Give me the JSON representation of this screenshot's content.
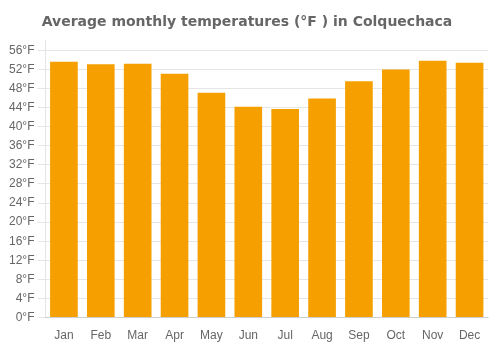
{
  "chart_data": {
    "type": "bar",
    "title": "Average monthly temperatures (°F ) in Colquechaca",
    "categories": [
      "Jan",
      "Feb",
      "Mar",
      "Apr",
      "May",
      "Jun",
      "Jul",
      "Aug",
      "Sep",
      "Oct",
      "Nov",
      "Dec"
    ],
    "values": [
      53.6,
      53.1,
      53.2,
      51.1,
      47.1,
      44.2,
      43.7,
      45.9,
      49.5,
      52.0,
      53.8,
      53.4
    ],
    "color": "#F5A000",
    "ylim": [
      0,
      58
    ],
    "yticks": [
      {
        "value": 0,
        "label": "0°F"
      },
      {
        "value": 4,
        "label": "4°F"
      },
      {
        "value": 8,
        "label": "8°F"
      },
      {
        "value": 12,
        "label": "12°F"
      },
      {
        "value": 16,
        "label": "16°F"
      },
      {
        "value": 20,
        "label": "20°F"
      },
      {
        "value": 24,
        "label": "24°F"
      },
      {
        "value": 28,
        "label": "28°F"
      },
      {
        "value": 32,
        "label": "32°F"
      },
      {
        "value": 36,
        "label": "36°F"
      },
      {
        "value": 40,
        "label": "40°F"
      },
      {
        "value": 44,
        "label": "44°F"
      },
      {
        "value": 48,
        "label": "48°F"
      },
      {
        "value": 52,
        "label": "52°F"
      },
      {
        "value": 56,
        "label": "56°F"
      }
    ],
    "grid": true
  }
}
